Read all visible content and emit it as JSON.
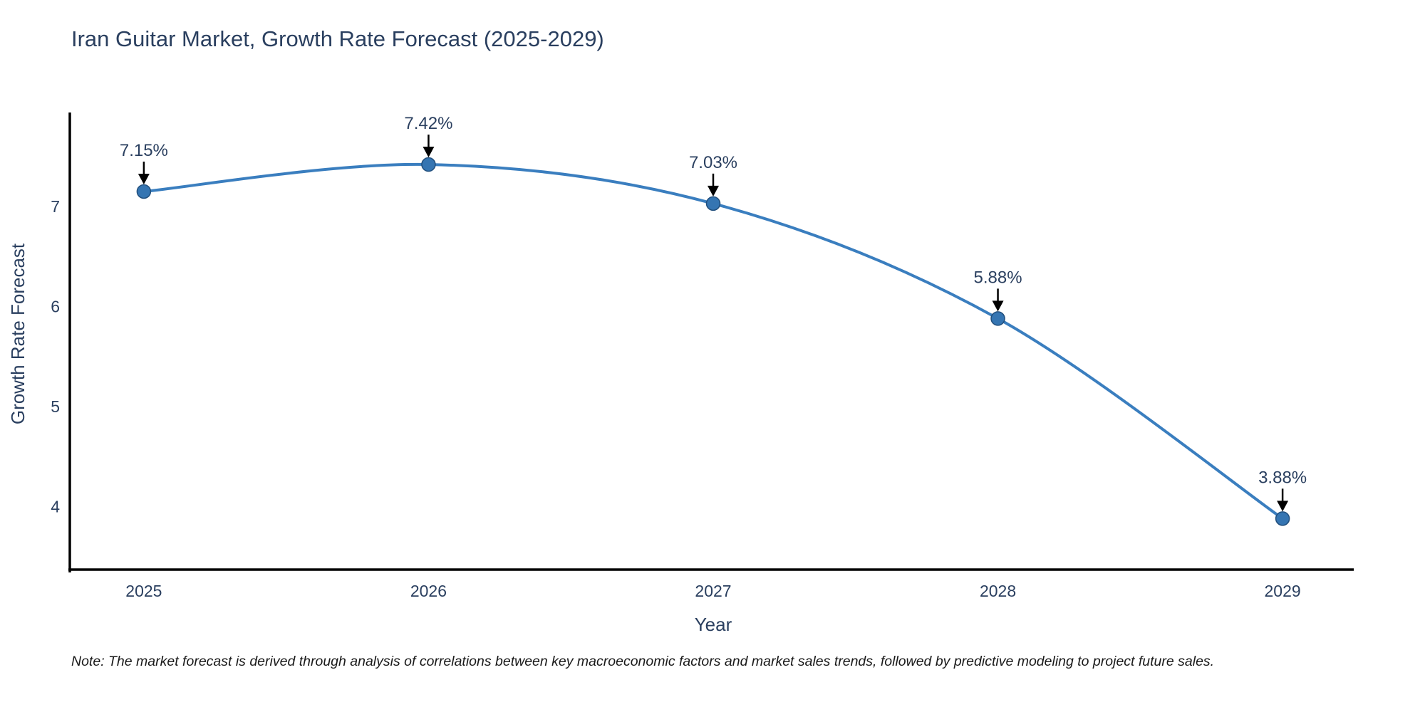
{
  "title": "Iran Guitar Market, Growth Rate Forecast (2025-2029)",
  "note": "Note: The market forecast is derived through analysis of correlations between key macroeconomic factors and market sales trends, followed by predictive modeling to project future sales.",
  "colors": {
    "line": "#3a7ebf",
    "marker_fill": "#3575b2",
    "marker_edge": "#214f7d",
    "axis_line": "#000000",
    "tick_text": "#2a3f5f",
    "axis_title_text": "#2a3f5f",
    "annotation_text": "#2a3f5f",
    "arrow": "#000000",
    "background": "#ffffff"
  },
  "chart_data": {
    "type": "line",
    "title": "Iran Guitar Market, Growth Rate Forecast (2025-2029)",
    "x": [
      2025,
      2026,
      2027,
      2028,
      2029
    ],
    "y": [
      7.15,
      7.42,
      7.03,
      5.88,
      3.88
    ],
    "point_labels": [
      "7.15%",
      "7.42%",
      "7.03%",
      "5.88%",
      "3.88%"
    ],
    "xlabel": "Year",
    "ylabel": "Growth Rate Forecast",
    "x_tick_labels": [
      "2025",
      "2026",
      "2027",
      "2028",
      "2029"
    ],
    "y_tick_values": [
      4,
      5,
      6,
      7
    ],
    "y_tick_labels": [
      "4",
      "5",
      "6",
      "7"
    ],
    "xlim": [
      2024.74,
      2029.25
    ],
    "ylim": [
      3.37,
      7.94
    ],
    "grid": false,
    "legend_position": "none",
    "line_shape": "spline",
    "annotations": "arrow-above-each-point"
  }
}
